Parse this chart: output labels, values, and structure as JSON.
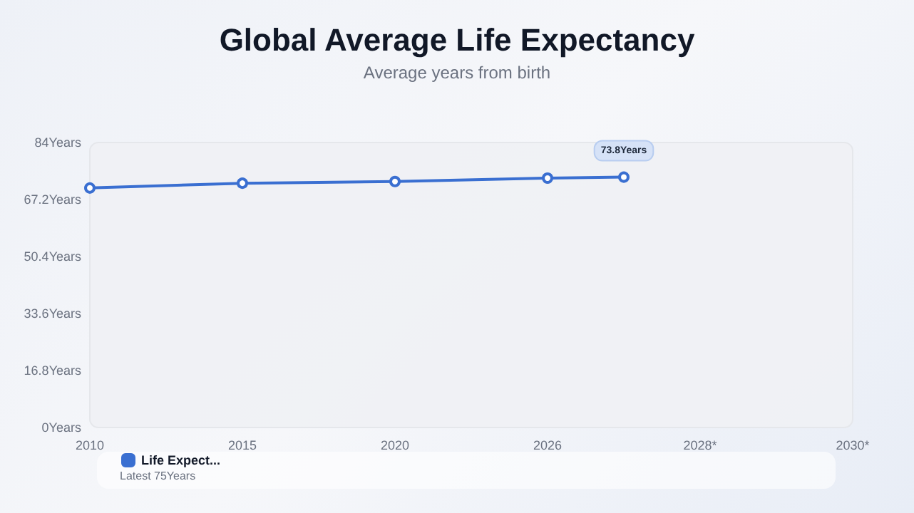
{
  "chart_data": {
    "type": "line",
    "title": "Global Average Life Expectancy",
    "subtitle": "Average years from birth",
    "categories": [
      "2010",
      null,
      "2015",
      null,
      "2020",
      null,
      "2026",
      null,
      "2028*",
      null,
      "2030*"
    ],
    "series": [
      {
        "name": "Life Expect...",
        "color": "#3a6fd1",
        "values": [
          70.6,
          null,
          72.0,
          null,
          72.5,
          null,
          73.5,
          73.8,
          null,
          null,
          null
        ],
        "value_labels": [
          null,
          null,
          null,
          null,
          null,
          null,
          null,
          "73.8Years",
          null,
          null,
          null
        ]
      }
    ],
    "ylim": [
      0,
      84
    ],
    "yticks": [
      {
        "value": 0,
        "label": "0Years"
      },
      {
        "value": 16.8,
        "label": "16.8Years"
      },
      {
        "value": 33.6,
        "label": "33.6Years"
      },
      {
        "value": 50.4,
        "label": "50.4Years"
      },
      {
        "value": 67.2,
        "label": "67.2Years"
      },
      {
        "value": 84,
        "label": "84Years"
      }
    ],
    "annotations": [
      "Latest 75Years"
    ],
    "grid": false,
    "legend": "bottom left",
    "marker": "circle",
    "line_style": "solid"
  }
}
